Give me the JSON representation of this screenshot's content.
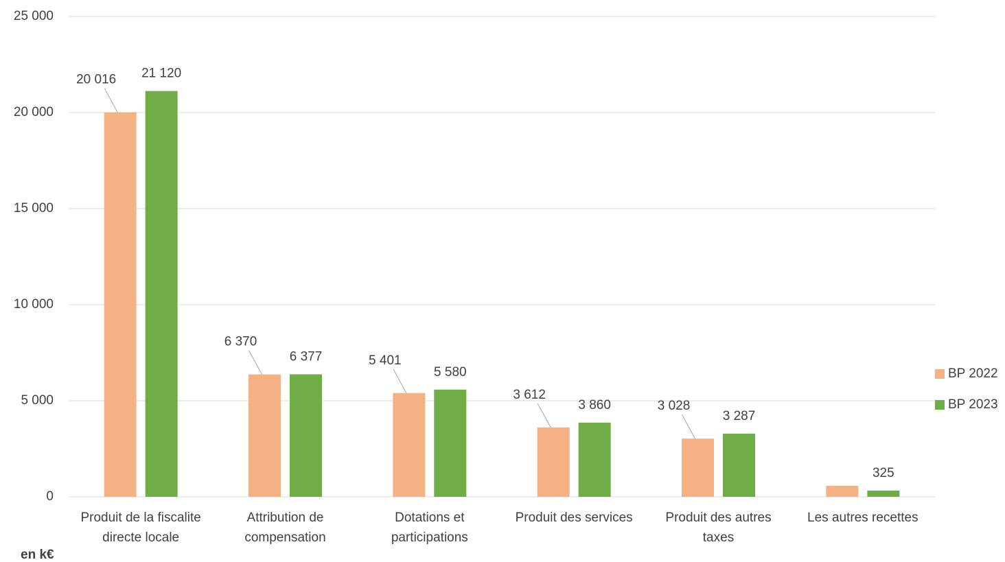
{
  "chart_data": {
    "type": "bar",
    "unit_label": "en k€",
    "categories": [
      "Produit de la fiscalite directe locale",
      "Attribution de compensation",
      "Dotations et participations",
      "Produit des services",
      "Produit des autres taxes",
      "Les autres recettes"
    ],
    "series": [
      {
        "name": "BP 2022",
        "color": "#f4b183",
        "values": [
          20016,
          6370,
          5401,
          3612,
          3028,
          570
        ],
        "value_labels": [
          "20 016",
          "6 370",
          "5 401",
          "3 612",
          "3 028",
          null
        ]
      },
      {
        "name": "BP 2023",
        "color": "#70ad47",
        "values": [
          21120,
          6377,
          5580,
          3860,
          3287,
          325
        ],
        "value_labels": [
          "21 120",
          "6 377",
          "5 580",
          "3 860",
          "3 287",
          "325"
        ]
      }
    ],
    "ylim": [
      0,
      25000
    ],
    "yticks": [
      0,
      {
        "value": 5000,
        "label": "5 000"
      },
      {
        "value": 10000,
        "label": "10 000"
      },
      {
        "value": 15000,
        "label": "15 000"
      },
      {
        "value": 20000,
        "label": "20 000"
      },
      {
        "value": 25000,
        "label": "25 000"
      }
    ],
    "grid": true,
    "legend": "right"
  }
}
